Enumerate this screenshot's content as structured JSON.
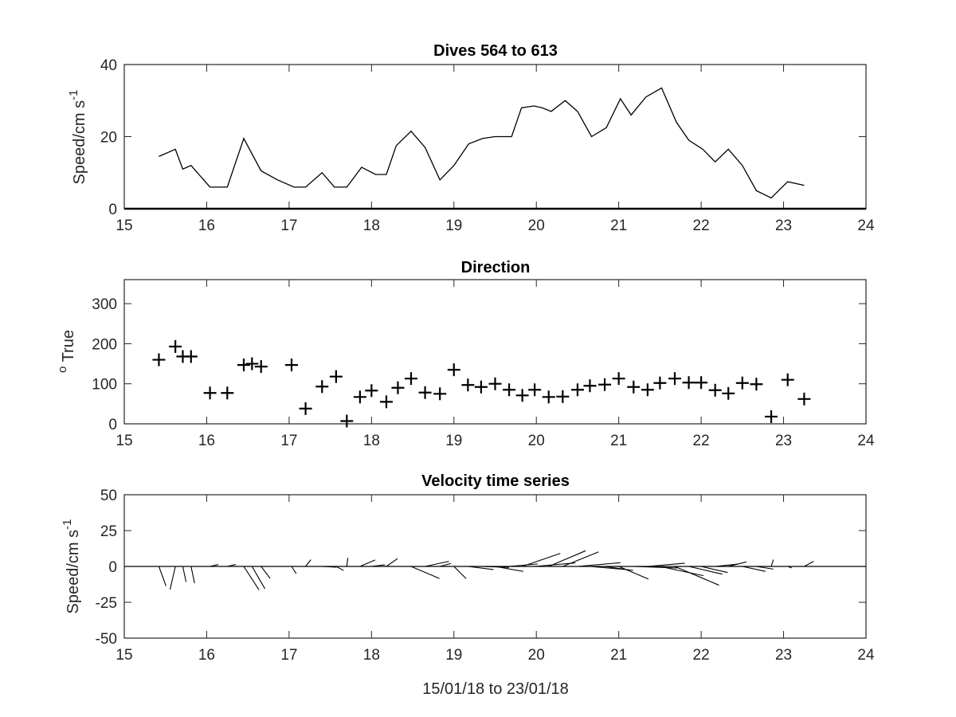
{
  "chart_data": [
    {
      "type": "line",
      "title": "Dives 564 to 613",
      "xlabel": "",
      "ylabel": "Speed/cm s",
      "ylabel_superscript": "-1",
      "xlim": [
        15,
        24
      ],
      "ylim": [
        0,
        40
      ],
      "xticks": [
        "15",
        "16",
        "17",
        "18",
        "19",
        "20",
        "21",
        "22",
        "23",
        "24"
      ],
      "yticks": [
        "0",
        "20",
        "40"
      ],
      "series": [
        {
          "x": [
            15.42,
            15.62,
            15.71,
            15.81,
            16.04,
            16.25,
            16.45,
            16.66,
            16.86,
            17.06,
            17.2,
            17.4,
            17.55,
            17.7,
            17.88,
            18.05,
            18.18,
            18.3,
            18.48,
            18.65,
            18.83,
            19.0,
            19.18,
            19.35,
            19.5,
            19.7,
            19.82,
            19.97,
            20.07,
            20.18,
            20.35,
            20.5,
            20.67,
            20.85,
            21.02,
            21.15,
            21.33,
            21.52,
            21.7,
            21.85,
            22.02,
            22.17,
            22.33,
            22.5,
            22.67,
            22.85,
            23.05,
            23.25
          ],
          "y": [
            14.5,
            16.5,
            11,
            12,
            6,
            6,
            19.5,
            10.5,
            8,
            6,
            6,
            10,
            6,
            6,
            11.5,
            9.5,
            9.5,
            17.5,
            21.5,
            17,
            8,
            12,
            18,
            19.5,
            20,
            20,
            28,
            28.5,
            28,
            27,
            30,
            27,
            20,
            22.5,
            30.5,
            26,
            31,
            33.5,
            24,
            19,
            16.5,
            13,
            16.5,
            12,
            5,
            3,
            7.5,
            6.5
          ]
        }
      ]
    },
    {
      "type": "scatter",
      "title": "Direction",
      "xlabel": "",
      "ylabel": "True",
      "ylabel_prefix_superscript": "o",
      "xlim": [
        15,
        24
      ],
      "ylim": [
        0,
        360
      ],
      "xticks": [
        "15",
        "16",
        "17",
        "18",
        "19",
        "20",
        "21",
        "22",
        "23",
        "24"
      ],
      "yticks": [
        "0",
        "100",
        "200",
        "300"
      ],
      "marker": "+",
      "series": [
        {
          "x": [
            15.42,
            15.62,
            15.71,
            15.81,
            16.04,
            16.25,
            16.45,
            16.55,
            16.66,
            17.03,
            17.2,
            17.4,
            17.57,
            17.7,
            17.86,
            18.0,
            18.18,
            18.32,
            18.48,
            18.65,
            18.83,
            19.0,
            19.17,
            19.33,
            19.5,
            19.67,
            19.83,
            19.98,
            20.15,
            20.32,
            20.5,
            20.65,
            20.83,
            21.0,
            21.18,
            21.35,
            21.5,
            21.68,
            21.85,
            22.0,
            22.17,
            22.33,
            22.5,
            22.67,
            22.85,
            23.05,
            23.25
          ],
          "y": [
            160,
            193,
            168,
            168,
            77,
            77,
            147,
            150,
            143,
            147,
            38,
            93,
            118,
            7,
            67,
            83,
            55,
            90,
            113,
            78,
            75,
            135,
            97,
            92,
            100,
            85,
            71,
            85,
            67,
            68,
            85,
            95,
            98,
            113,
            92,
            85,
            102,
            113,
            103,
            103,
            84,
            76,
            102,
            99,
            18,
            110,
            62
          ]
        }
      ]
    },
    {
      "type": "line",
      "subtype": "velocity-stick-plot",
      "title": "Velocity time series",
      "xlabel": "15/01/18 to 23/01/18",
      "ylabel": "Speed/cm s",
      "ylabel_superscript": "-1",
      "xlim": [
        15,
        24
      ],
      "ylim": [
        -50,
        50
      ],
      "xticks": [
        "15",
        "16",
        "17",
        "18",
        "19",
        "20",
        "21",
        "22",
        "23",
        "24"
      ],
      "yticks": [
        "-50",
        "-25",
        "0",
        "25",
        "50"
      ],
      "sticks": {
        "t": [
          15.42,
          15.62,
          15.71,
          15.81,
          16.04,
          16.25,
          16.45,
          16.55,
          16.66,
          17.03,
          17.2,
          17.4,
          17.57,
          17.7,
          17.86,
          18.0,
          18.18,
          18.32,
          18.48,
          18.65,
          18.83,
          19.0,
          19.17,
          19.33,
          19.5,
          19.67,
          19.83,
          19.98,
          20.15,
          20.32,
          20.5,
          20.65,
          20.83,
          21.0,
          21.18,
          21.35,
          21.5,
          21.68,
          21.85,
          22.0,
          22.17,
          22.33,
          22.5,
          22.67,
          22.85,
          23.05,
          23.25
        ],
        "speed": [
          14.5,
          16.5,
          11,
          12,
          6,
          6,
          19.5,
          18,
          10.5,
          6,
          6,
          10,
          6,
          6,
          11.5,
          9.5,
          9.5,
          17.5,
          21.5,
          17,
          8,
          12,
          18,
          19.5,
          20,
          20,
          28,
          28.5,
          28,
          27,
          30,
          27,
          20,
          22.5,
          30.5,
          26,
          31,
          33.5,
          24,
          19,
          16.5,
          13,
          16.5,
          12,
          5,
          3,
          7.5
        ],
        "direction": [
          160,
          193,
          168,
          168,
          77,
          77,
          147,
          150,
          143,
          147,
          38,
          93,
          118,
          7,
          67,
          83,
          55,
          90,
          113,
          78,
          75,
          135,
          97,
          92,
          100,
          85,
          71,
          85,
          67,
          68,
          85,
          95,
          98,
          113,
          92,
          85,
          102,
          113,
          103,
          103,
          84,
          76,
          102,
          99,
          18,
          110,
          62
        ]
      }
    }
  ]
}
